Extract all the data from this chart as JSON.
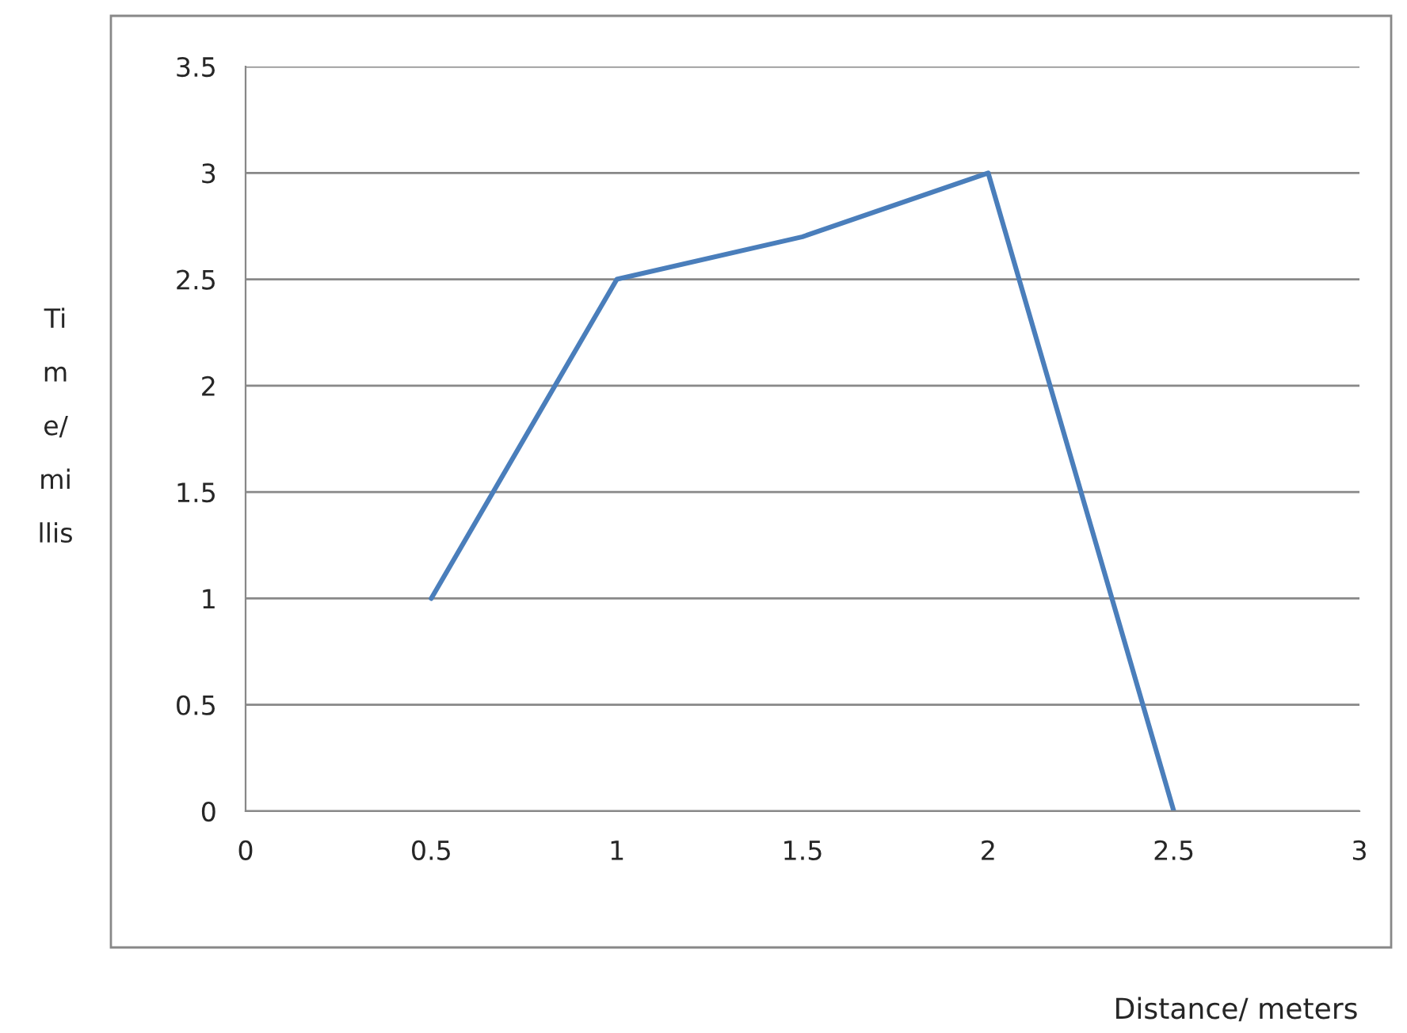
{
  "chart_data": {
    "type": "line",
    "xlabel": "Distance/ meters",
    "ylabel": "Ti\nm\ne/\nmi\nllis",
    "x": [
      0.5,
      1,
      1.5,
      2,
      2.5
    ],
    "series": [
      {
        "color": "#4a7ebb",
        "values": [
          1,
          2.5,
          2.7,
          3,
          0
        ]
      }
    ],
    "xlim": [
      0,
      3
    ],
    "xticks": [
      0,
      0.5,
      1,
      1.5,
      2,
      2.5,
      3
    ],
    "ylim": [
      0,
      3.5
    ],
    "yticks": [
      0,
      0.5,
      1,
      1.5,
      2,
      2.5,
      3,
      3.5
    ],
    "grid": "y",
    "legend": false,
    "marker": "none",
    "line_style": "solid"
  }
}
